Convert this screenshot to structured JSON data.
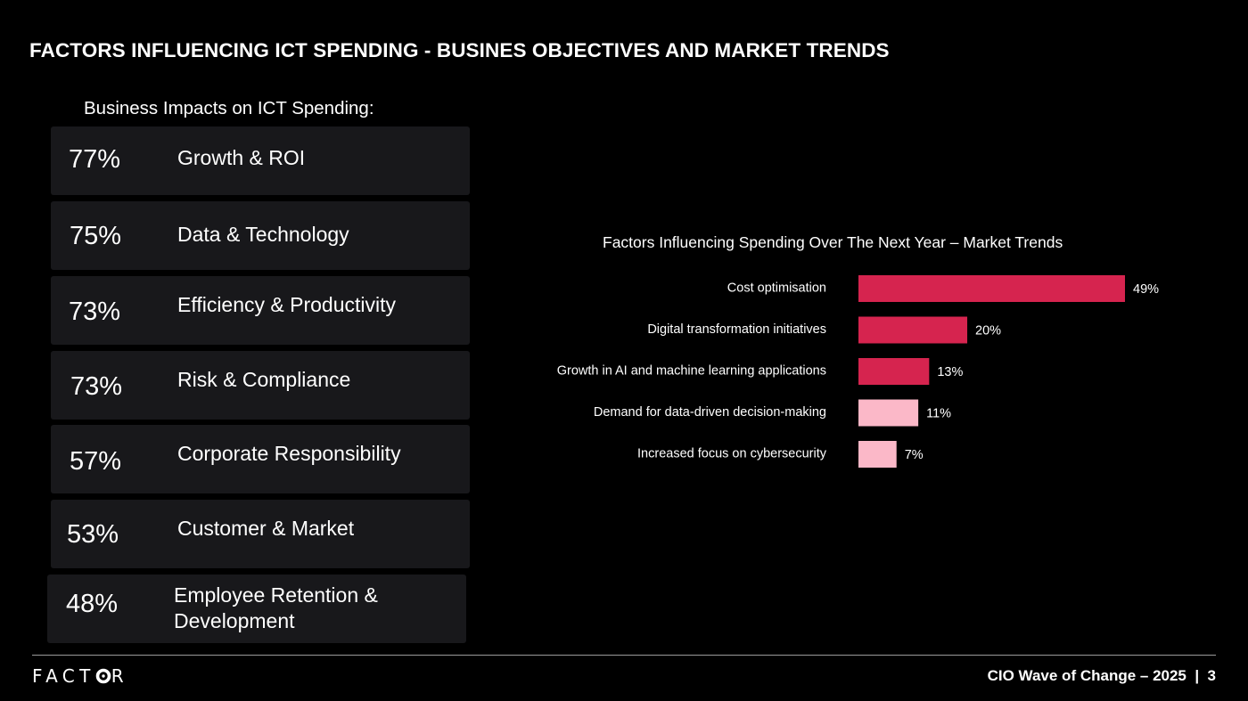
{
  "header": {
    "title": "FACTORS INFLUENCING ICT SPENDING - BUSINES OBJECTIVES AND MARKET TRENDS"
  },
  "impacts": {
    "heading": "Business Impacts on ICT Spending:",
    "items": [
      {
        "percent": "77%",
        "label": "Growth & ROI"
      },
      {
        "percent": "75%",
        "label": "Data & Technology"
      },
      {
        "percent": "73%",
        "label": "Efficiency & Productivity"
      },
      {
        "percent": "73%",
        "label": "Risk & Compliance"
      },
      {
        "percent": "57%",
        "label": "Corporate Responsibility"
      },
      {
        "percent": "53%",
        "label": "Customer & Market"
      },
      {
        "percent": "48%",
        "label": "Employee Retention &\nDevelopment"
      }
    ]
  },
  "chart_data": {
    "type": "bar",
    "orientation": "horizontal",
    "title": "Factors Influencing Spending Over The Next Year – Market Trends",
    "categories": [
      "Cost optimisation",
      "Digital transformation initiatives",
      "Growth in AI and machine learning applications",
      "Demand for data-driven decision-making",
      "Increased focus on cybersecurity"
    ],
    "values": [
      49,
      20,
      13,
      11,
      7
    ],
    "value_labels": [
      "49%",
      "20%",
      "13%",
      "11%",
      "7%"
    ],
    "bar_colors": [
      "#d6244f",
      "#d6244f",
      "#d6244f",
      "#fbb8c8",
      "#fbb8c8"
    ],
    "xlim": [
      0,
      49
    ],
    "grid": false
  },
  "footer": {
    "logo_text": "FACTOR",
    "report": "CIO Wave of Change – 2025  |  3"
  },
  "colors": {
    "background": "#000000",
    "card": "#18181b",
    "accent": "#d6244f",
    "accent_light": "#fbb8c8",
    "text": "#ffffff"
  }
}
